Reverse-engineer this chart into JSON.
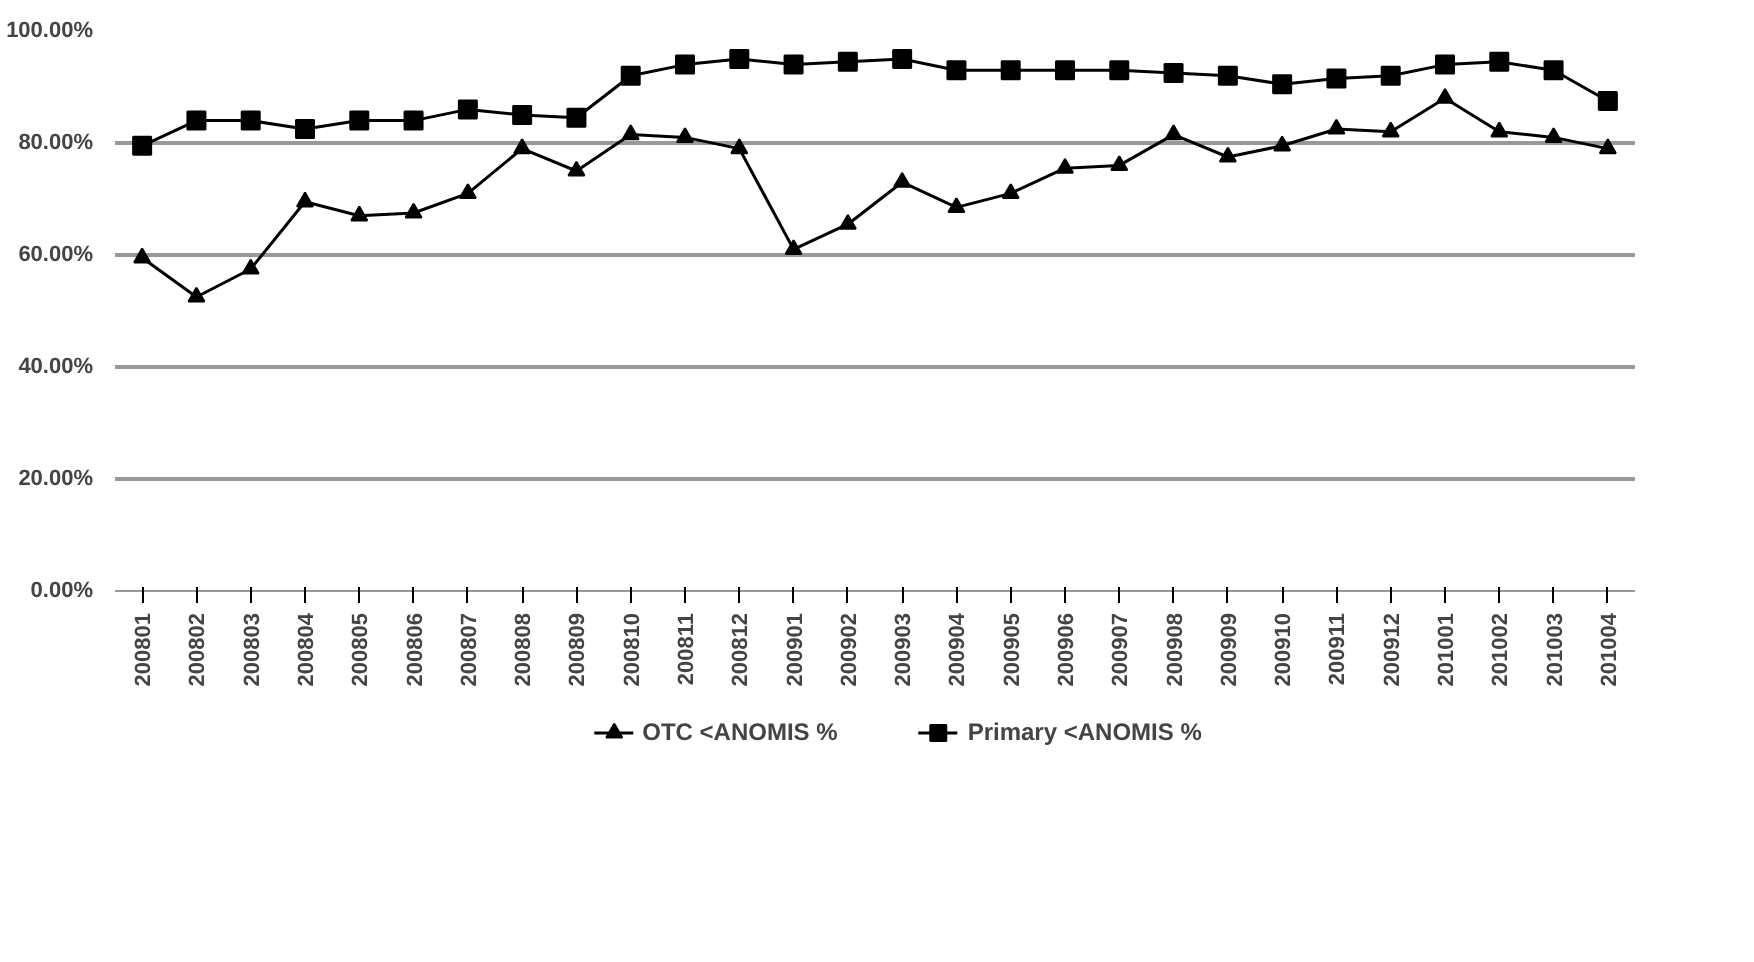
{
  "chart_data": {
    "type": "line",
    "categories": [
      "200801",
      "200802",
      "200803",
      "200804",
      "200805",
      "200806",
      "200807",
      "200808",
      "200809",
      "200810",
      "200811",
      "200812",
      "200901",
      "200902",
      "200903",
      "200904",
      "200905",
      "200906",
      "200907",
      "200908",
      "200909",
      "200910",
      "200911",
      "200912",
      "201001",
      "201002",
      "201003",
      "201004"
    ],
    "series": [
      {
        "name": "OTC <ANOMIS %",
        "color": "#000000",
        "marker": "triangle",
        "values": [
          59.5,
          52.5,
          57.5,
          69.5,
          67,
          67.5,
          71,
          79,
          75,
          81.5,
          81,
          79,
          61,
          65.5,
          73,
          68.5,
          71,
          75.5,
          76,
          81.5,
          77.5,
          79.5,
          82.5,
          82,
          88,
          82,
          81,
          79
        ]
      },
      {
        "name": "Primary <ANOMIS %",
        "color": "#000000",
        "marker": "square",
        "values": [
          79.5,
          84,
          84,
          82.5,
          84,
          84,
          86,
          85,
          84.5,
          92,
          94,
          95,
          94,
          94.5,
          95,
          93,
          93,
          93,
          93,
          92.5,
          92,
          90.5,
          91.5,
          92,
          94,
          94.5,
          93,
          87.5
        ]
      }
    ],
    "ylim": [
      0,
      100
    ],
    "yticks": [
      {
        "value": 0,
        "label": "0.00%"
      },
      {
        "value": 20,
        "label": "20.00%"
      },
      {
        "value": 40,
        "label": "40.00%"
      },
      {
        "value": 60,
        "label": "60.00%"
      },
      {
        "value": 80,
        "label": "80.00%"
      },
      {
        "value": 100,
        "label": "100.00%"
      }
    ],
    "grid": "y",
    "legend": "bottom",
    "line_style": "solid"
  }
}
